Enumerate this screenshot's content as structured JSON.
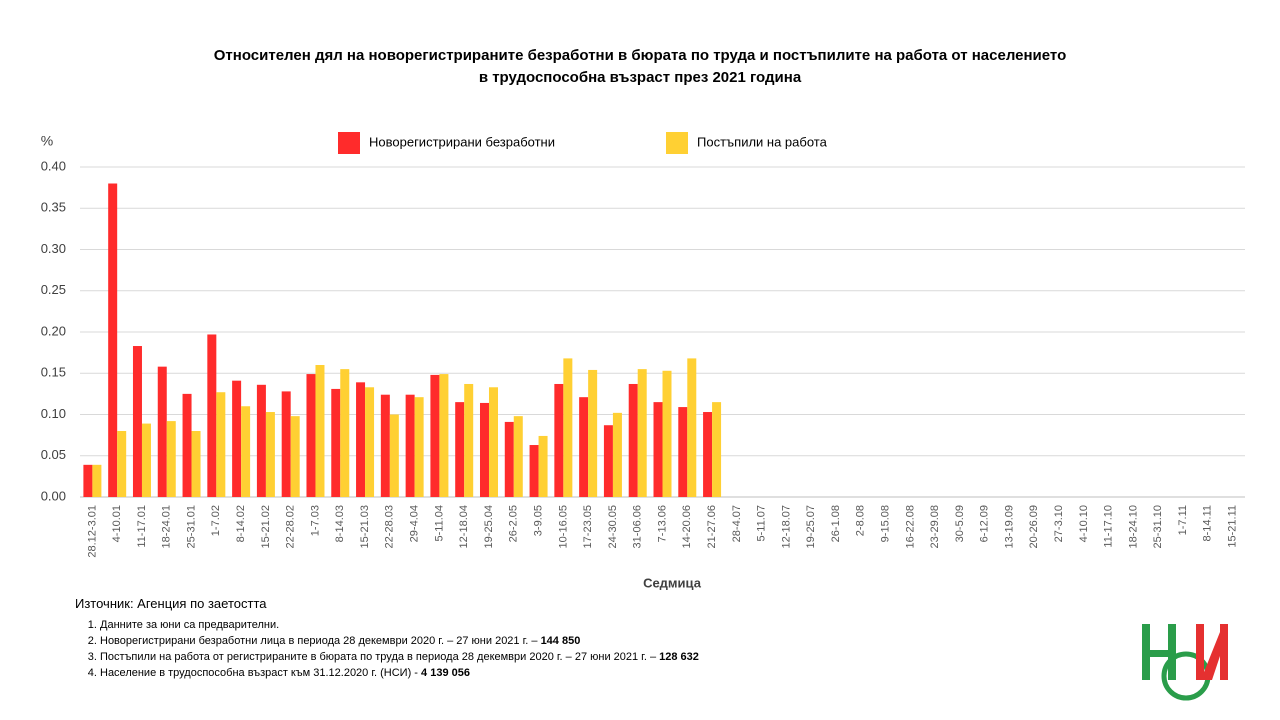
{
  "chart_data": {
    "type": "bar",
    "title": [
      "Относителен дял на новорегистрираните безработни в бюрата по труда и постъпилите на работа от населението",
      "в трудоспособна възраст през 2021 година"
    ],
    "y_unit": "%",
    "x_label": "Седмица",
    "categories": [
      "28.12-3.01",
      "4-10.01",
      "11-17.01",
      "18-24.01",
      "25-31.01",
      "1-7.02",
      "8-14.02",
      "15-21.02",
      "22-28.02",
      "1-7.03",
      "8-14.03",
      "15-21.03",
      "22-28.03",
      "29-4.04",
      "5-11.04",
      "12-18.04",
      "19-25.04",
      "26-2.05",
      "3-9.05",
      "10-16.05",
      "17-23.05",
      "24-30.05",
      "31-06.06",
      "7-13.06",
      "14-20.06",
      "21-27.06",
      "28-4.07",
      "5-11.07",
      "12-18.07",
      "19-25.07",
      "26-1.08",
      "2-8.08",
      "9-15.08",
      "16-22.08",
      "23-29.08",
      "30-5.09",
      "6-12.09",
      "13-19.09",
      "20-26.09",
      "27-3.10",
      "4-10.10",
      "11-17.10",
      "18-24.10",
      "25-31.10",
      "1-7.11",
      "8-14.11",
      "15-21.11"
    ],
    "series": [
      {
        "name": "Новорегистрирани безработни",
        "color": "#ff2b2b",
        "values": [
          0.039,
          0.38,
          0.183,
          0.158,
          0.125,
          0.197,
          0.141,
          0.136,
          0.128,
          0.149,
          0.131,
          0.139,
          0.124,
          0.124,
          0.148,
          0.115,
          0.114,
          0.091,
          0.063,
          0.137,
          0.121,
          0.087,
          0.137,
          0.115,
          0.109,
          0.103,
          null,
          null,
          null,
          null,
          null,
          null,
          null,
          null,
          null,
          null,
          null,
          null,
          null,
          null,
          null,
          null,
          null,
          null,
          null,
          null,
          null
        ]
      },
      {
        "name": "Постъпили на работа",
        "color": "#ffd033",
        "values": [
          0.039,
          0.08,
          0.089,
          0.092,
          0.08,
          0.127,
          0.11,
          0.103,
          0.098,
          0.16,
          0.155,
          0.133,
          0.1,
          0.121,
          0.149,
          0.137,
          0.133,
          0.098,
          0.074,
          0.168,
          0.154,
          0.102,
          0.155,
          0.153,
          0.168,
          0.115,
          null,
          null,
          null,
          null,
          null,
          null,
          null,
          null,
          null,
          null,
          null,
          null,
          null,
          null,
          null,
          null,
          null,
          null,
          null,
          null,
          null
        ]
      }
    ],
    "ylim": [
      0,
      0.4
    ],
    "yticks": [
      {
        "value": 0,
        "label": "0.00"
      },
      0.05,
      {
        "value": 0.1,
        "label": "0.10"
      },
      0.15,
      {
        "value": 0.2,
        "label": "0.20"
      },
      0.25,
      {
        "value": 0.3,
        "label": "0.30"
      },
      0.35,
      {
        "value": 0.4,
        "label": "0.40"
      }
    ],
    "grid": true,
    "legend": "top",
    "source": "Източник: Агенция по заетостта",
    "notes": [
      {
        "text": "Данните за юни са предварителни."
      },
      {
        "text": "Новорегистрирани безработни лица в периода 28 декември  2020 г. – 27 юни 2021 г. – ",
        "bold": "144 850"
      },
      {
        "text": "Постъпили на работа от регистрираните в бюрата по труда в периода 28 декември  2020 г. – 27 юни 2021 г. – ",
        "bold": "128 632"
      },
      {
        "text": "Население в трудоспособна възраст към 31.12.2020 г. (НСИ)  - ",
        "bold": "4 139 056"
      }
    ]
  }
}
